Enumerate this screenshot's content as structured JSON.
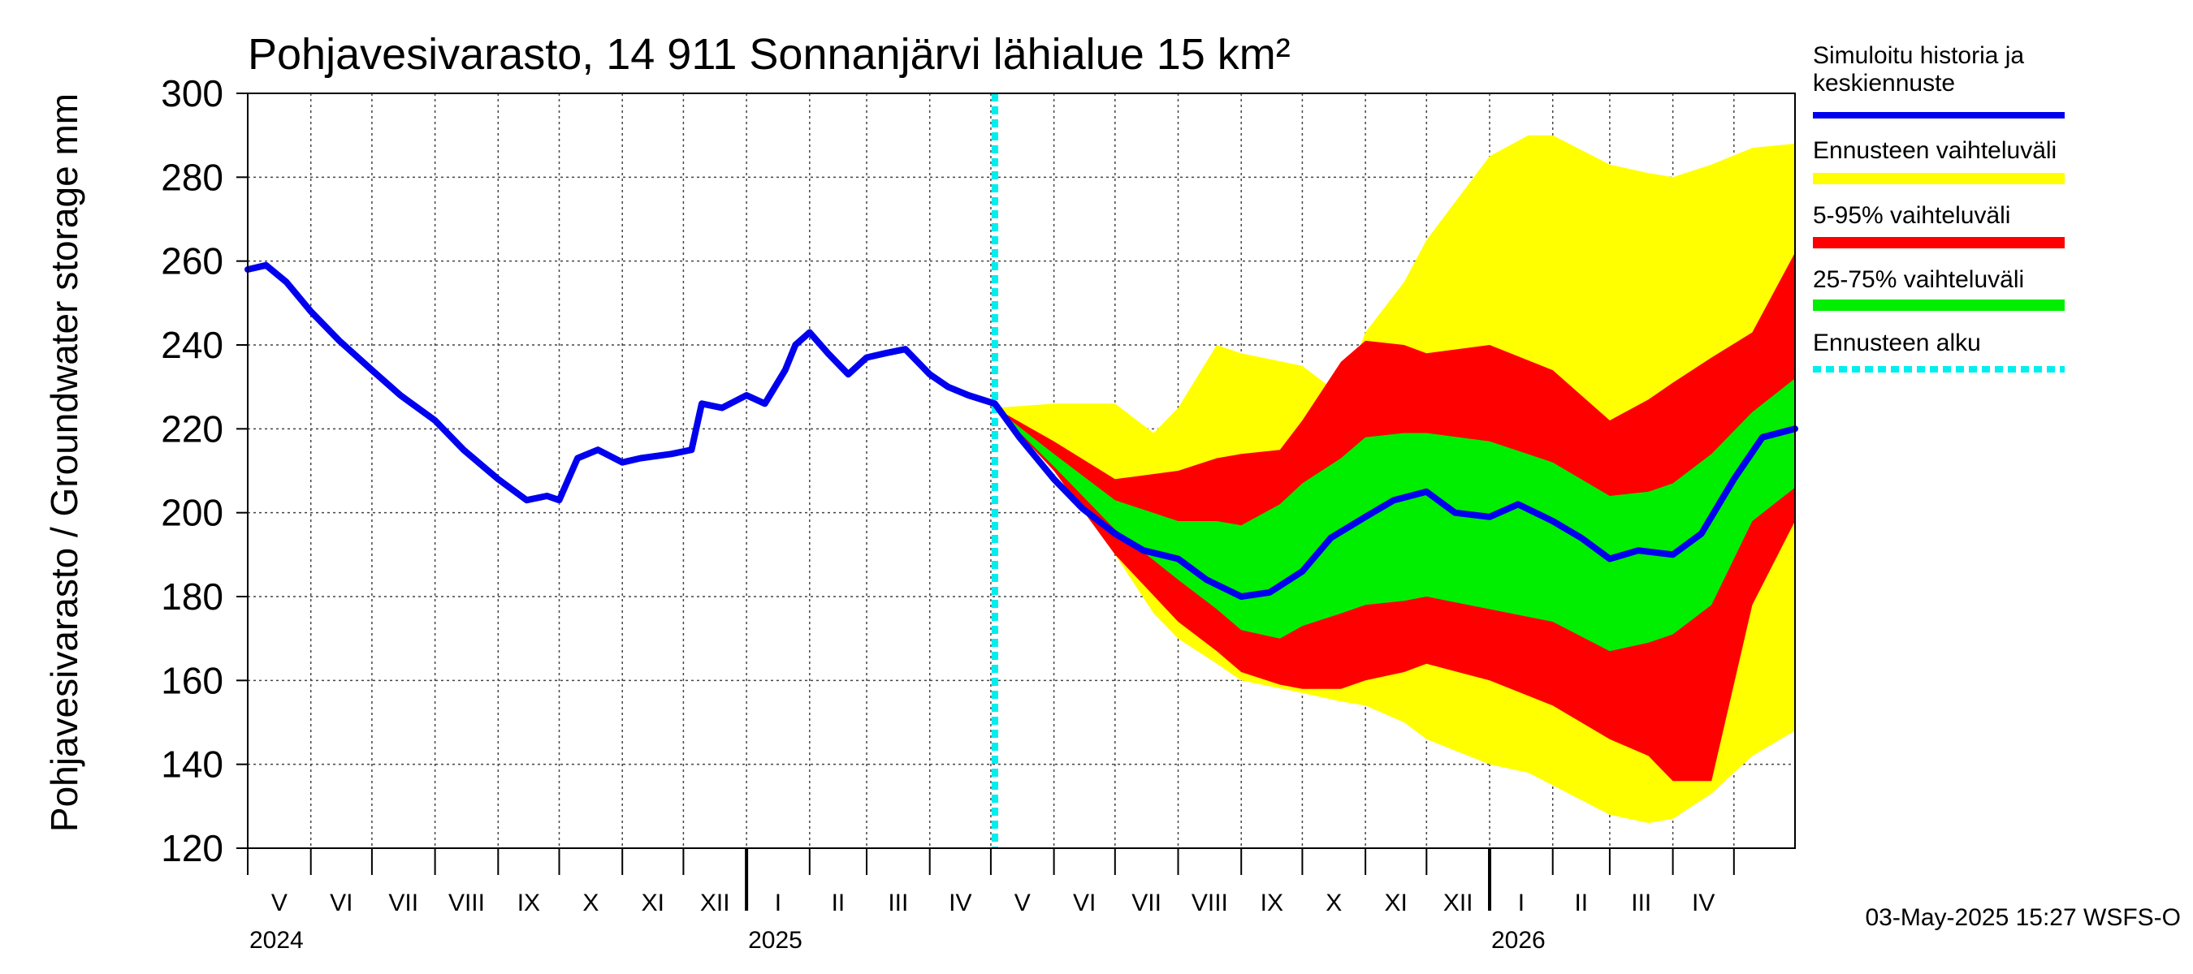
{
  "chart_data": {
    "type": "area",
    "title": "Pohjavesivarasto, 14 911 Sonnanjärvi lähialue 15 km²",
    "ylabel": "Pohjavesivarasto / Groundwater storage   mm",
    "ylim": [
      120,
      300
    ],
    "yticks": [
      120,
      140,
      160,
      180,
      200,
      220,
      240,
      260,
      280,
      300
    ],
    "xlim": [
      "2024-05-01",
      "2026-05-31"
    ],
    "months": [
      "V",
      "VI",
      "VII",
      "VIII",
      "IX",
      "X",
      "XI",
      "XII",
      "I",
      "II",
      "III",
      "IV",
      "V",
      "VI",
      "VII",
      "VIII",
      "IX",
      "X",
      "XI",
      "XII",
      "I",
      "II",
      "III",
      "IV"
    ],
    "years": [
      "2024",
      "2025",
      "2026"
    ],
    "forecast_start": "2025-05-03",
    "timestamp": "03-May-2025 15:27 WSFS-O",
    "legend": [
      {
        "label": "Simuloitu historia ja keskiennuste",
        "color": "#0000ee",
        "style": "line"
      },
      {
        "label": "Ennusteen vaihteluväli",
        "color": "#ffff00",
        "style": "band"
      },
      {
        "label": "5-95% vaihteluväli",
        "color": "#ff0000",
        "style": "band"
      },
      {
        "label": "25-75% vaihteluväli",
        "color": "#00ee00",
        "style": "band"
      },
      {
        "label": "Ennusteen alku",
        "color": "#00eeee",
        "style": "dashed"
      }
    ],
    "series": [
      {
        "name": "Simuloitu historia ja keskiennuste",
        "x": [
          "2024-05-01",
          "2024-05-10",
          "2024-05-20",
          "2024-06-01",
          "2024-06-15",
          "2024-07-01",
          "2024-07-15",
          "2024-08-01",
          "2024-08-15",
          "2024-09-01",
          "2024-09-15",
          "2024-09-25",
          "2024-10-01",
          "2024-10-10",
          "2024-10-20",
          "2024-11-01",
          "2024-11-10",
          "2024-11-25",
          "2024-12-05",
          "2024-12-10",
          "2024-12-20",
          "2025-01-01",
          "2025-01-10",
          "2025-01-20",
          "2025-01-25",
          "2025-02-01",
          "2025-02-10",
          "2025-02-20",
          "2025-03-01",
          "2025-03-10",
          "2025-03-20",
          "2025-04-01",
          "2025-04-10",
          "2025-04-20",
          "2025-05-03",
          "2025-05-15",
          "2025-06-01",
          "2025-06-15",
          "2025-07-01",
          "2025-07-15",
          "2025-08-01",
          "2025-08-15",
          "2025-09-01",
          "2025-09-15",
          "2025-10-01",
          "2025-10-15",
          "2025-11-01",
          "2025-11-15",
          "2025-12-01",
          "2025-12-15",
          "2026-01-01",
          "2026-01-15",
          "2026-02-01",
          "2026-02-15",
          "2026-03-01",
          "2026-03-15",
          "2026-04-01",
          "2026-04-15",
          "2026-05-01",
          "2026-05-15",
          "2026-05-31"
        ],
        "y": [
          258,
          259,
          255,
          248,
          241,
          234,
          228,
          222,
          215,
          208,
          203,
          204,
          203,
          213,
          215,
          212,
          213,
          214,
          215,
          226,
          225,
          228,
          226,
          234,
          240,
          243,
          238,
          233,
          237,
          238,
          239,
          233,
          230,
          228,
          226,
          218,
          208,
          201,
          195,
          191,
          189,
          184,
          180,
          181,
          186,
          194,
          199,
          203,
          205,
          200,
          199,
          202,
          198,
          194,
          189,
          191,
          190,
          195,
          208,
          218,
          220
        ]
      }
    ],
    "bands": [
      {
        "name": "Ennusteen vaihteluväli",
        "x": [
          "2025-05-03",
          "2025-06-01",
          "2025-07-01",
          "2025-07-20",
          "2025-08-01",
          "2025-08-20",
          "2025-09-01",
          "2025-10-01",
          "2025-10-20",
          "2025-11-01",
          "2025-11-20",
          "2025-12-01",
          "2026-01-01",
          "2026-01-20",
          "2026-02-01",
          "2026-03-01",
          "2026-03-20",
          "2026-04-01",
          "2026-04-20",
          "2026-05-10",
          "2026-05-31"
        ],
        "upper": [
          225,
          226,
          226,
          219,
          225,
          240,
          238,
          235,
          228,
          243,
          255,
          265,
          285,
          290,
          290,
          283,
          281,
          280,
          283,
          287,
          288
        ],
        "lower": [
          225,
          211,
          190,
          176,
          170,
          164,
          160,
          157,
          155,
          154,
          150,
          146,
          140,
          138,
          135,
          128,
          126,
          127,
          133,
          142,
          148
        ]
      },
      {
        "name": "5-95% vaihteluväli",
        "x": [
          "2025-05-03",
          "2025-06-01",
          "2025-07-01",
          "2025-08-01",
          "2025-08-20",
          "2025-09-01",
          "2025-09-20",
          "2025-10-01",
          "2025-10-20",
          "2025-11-01",
          "2025-11-20",
          "2025-12-01",
          "2026-01-01",
          "2026-02-01",
          "2026-03-01",
          "2026-03-20",
          "2026-04-01",
          "2026-04-20",
          "2026-05-10",
          "2026-05-31"
        ],
        "upper": [
          225,
          217,
          208,
          210,
          213,
          214,
          215,
          222,
          236,
          241,
          240,
          238,
          240,
          234,
          222,
          227,
          231,
          237,
          243,
          262
        ],
        "lower": [
          225,
          210,
          190,
          174,
          167,
          162,
          159,
          158,
          158,
          160,
          162,
          164,
          160,
          154,
          146,
          142,
          136,
          136,
          178,
          198
        ]
      },
      {
        "name": "25-75% vaihteluväli",
        "x": [
          "2025-05-03",
          "2025-06-01",
          "2025-07-01",
          "2025-08-01",
          "2025-08-20",
          "2025-09-01",
          "2025-09-20",
          "2025-10-01",
          "2025-10-20",
          "2025-11-01",
          "2025-11-20",
          "2025-12-01",
          "2026-01-01",
          "2026-02-01",
          "2026-03-01",
          "2026-03-20",
          "2026-04-01",
          "2026-04-20",
          "2026-05-10",
          "2026-05-31"
        ],
        "upper": [
          225,
          214,
          203,
          198,
          198,
          197,
          202,
          207,
          213,
          218,
          219,
          219,
          217,
          212,
          204,
          205,
          207,
          214,
          224,
          232
        ],
        "lower": [
          225,
          211,
          196,
          184,
          177,
          172,
          170,
          173,
          176,
          178,
          179,
          180,
          177,
          174,
          167,
          169,
          171,
          178,
          198,
          206
        ]
      }
    ]
  }
}
